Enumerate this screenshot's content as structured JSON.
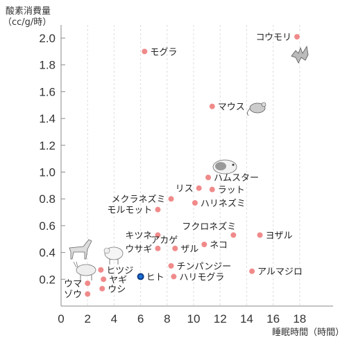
{
  "chart_data": {
    "type": "scatter",
    "ylabel_line1": "酸素消費量",
    "ylabel_line2": "（cc/g/時）",
    "xlabel": "睡眠時間（時間）",
    "xlim": [
      0,
      19
    ],
    "ylim": [
      0,
      2.15
    ],
    "xticks": [
      0,
      2,
      4,
      6,
      8,
      10,
      12,
      14,
      16,
      18
    ],
    "yticks": [
      0.2,
      0.4,
      0.6,
      0.8,
      1.0,
      1.2,
      1.4,
      1.6,
      1.8,
      2.0
    ],
    "ytick_labels": [
      "0.2",
      "0.4",
      "0.6",
      "0.8",
      "1.0",
      "1.2",
      "1.4",
      "1.6",
      "1.8",
      "2.0"
    ],
    "grid": "vertical dashed",
    "colors": {
      "point": "#f08a8a",
      "highlight": "#1a6fd6",
      "grid": "#dddddd",
      "axis": "#888888"
    },
    "points": [
      {
        "label": "コウモリ",
        "x": 17.8,
        "y": 2.01,
        "anchor": "left"
      },
      {
        "label": "モグラ",
        "x": 6.3,
        "y": 1.9,
        "anchor": "right"
      },
      {
        "label": "マウス",
        "x": 11.4,
        "y": 1.49,
        "anchor": "right"
      },
      {
        "label": "ハムスター",
        "x": 11.1,
        "y": 0.96,
        "anchor": "right"
      },
      {
        "label": "リス",
        "x": 10.4,
        "y": 0.88,
        "anchor": "left"
      },
      {
        "label": "ラット",
        "x": 11.4,
        "y": 0.87,
        "anchor": "right"
      },
      {
        "label": "メクラネズミ",
        "x": 8.3,
        "y": 0.8,
        "anchor": "left"
      },
      {
        "label": "ハリネズミ",
        "x": 10.1,
        "y": 0.77,
        "anchor": "right"
      },
      {
        "label": "モルモット",
        "x": 7.3,
        "y": 0.72,
        "anchor": "left"
      },
      {
        "label": "フクロネズミ",
        "x": 13.0,
        "y": 0.53,
        "anchor": "above-left"
      },
      {
        "label": "ヨザル",
        "x": 15.0,
        "y": 0.53,
        "anchor": "right"
      },
      {
        "label": "キツネ",
        "x": 7.3,
        "y": 0.53,
        "anchor": "left"
      },
      {
        "label": "アカゲ",
        "x": 8.6,
        "y": 0.43,
        "anchor": "above-left"
      },
      {
        "label": "ザル",
        "x": 8.6,
        "y": 0.43,
        "anchor": "right"
      },
      {
        "label": "ネコ",
        "x": 10.8,
        "y": 0.46,
        "anchor": "right"
      },
      {
        "label": "ウサギ",
        "x": 7.3,
        "y": 0.43,
        "anchor": "left"
      },
      {
        "label": "チンパンジー",
        "x": 8.3,
        "y": 0.3,
        "anchor": "right"
      },
      {
        "label": "アルマジロ",
        "x": 14.4,
        "y": 0.26,
        "anchor": "right"
      },
      {
        "label": "ヒツジ",
        "x": 3.0,
        "y": 0.27,
        "anchor": "right"
      },
      {
        "label": "ヒト",
        "x": 6.0,
        "y": 0.22,
        "anchor": "right",
        "highlight": true
      },
      {
        "label": "ハリモグラ",
        "x": 8.5,
        "y": 0.22,
        "anchor": "right"
      },
      {
        "label": "ヤギ",
        "x": 3.2,
        "y": 0.2,
        "anchor": "right"
      },
      {
        "label": "ウマ",
        "x": 2.0,
        "y": 0.17,
        "anchor": "left"
      },
      {
        "label": "ウシ",
        "x": 3.1,
        "y": 0.13,
        "anchor": "right"
      },
      {
        "label": "ゾウ",
        "x": 2.0,
        "y": 0.09,
        "anchor": "left"
      }
    ],
    "illustrations": [
      "bat-illustration",
      "mouse-illustration",
      "hamster-illustration",
      "horse-illustration",
      "sheep-illustration",
      "goat-illustration"
    ]
  }
}
